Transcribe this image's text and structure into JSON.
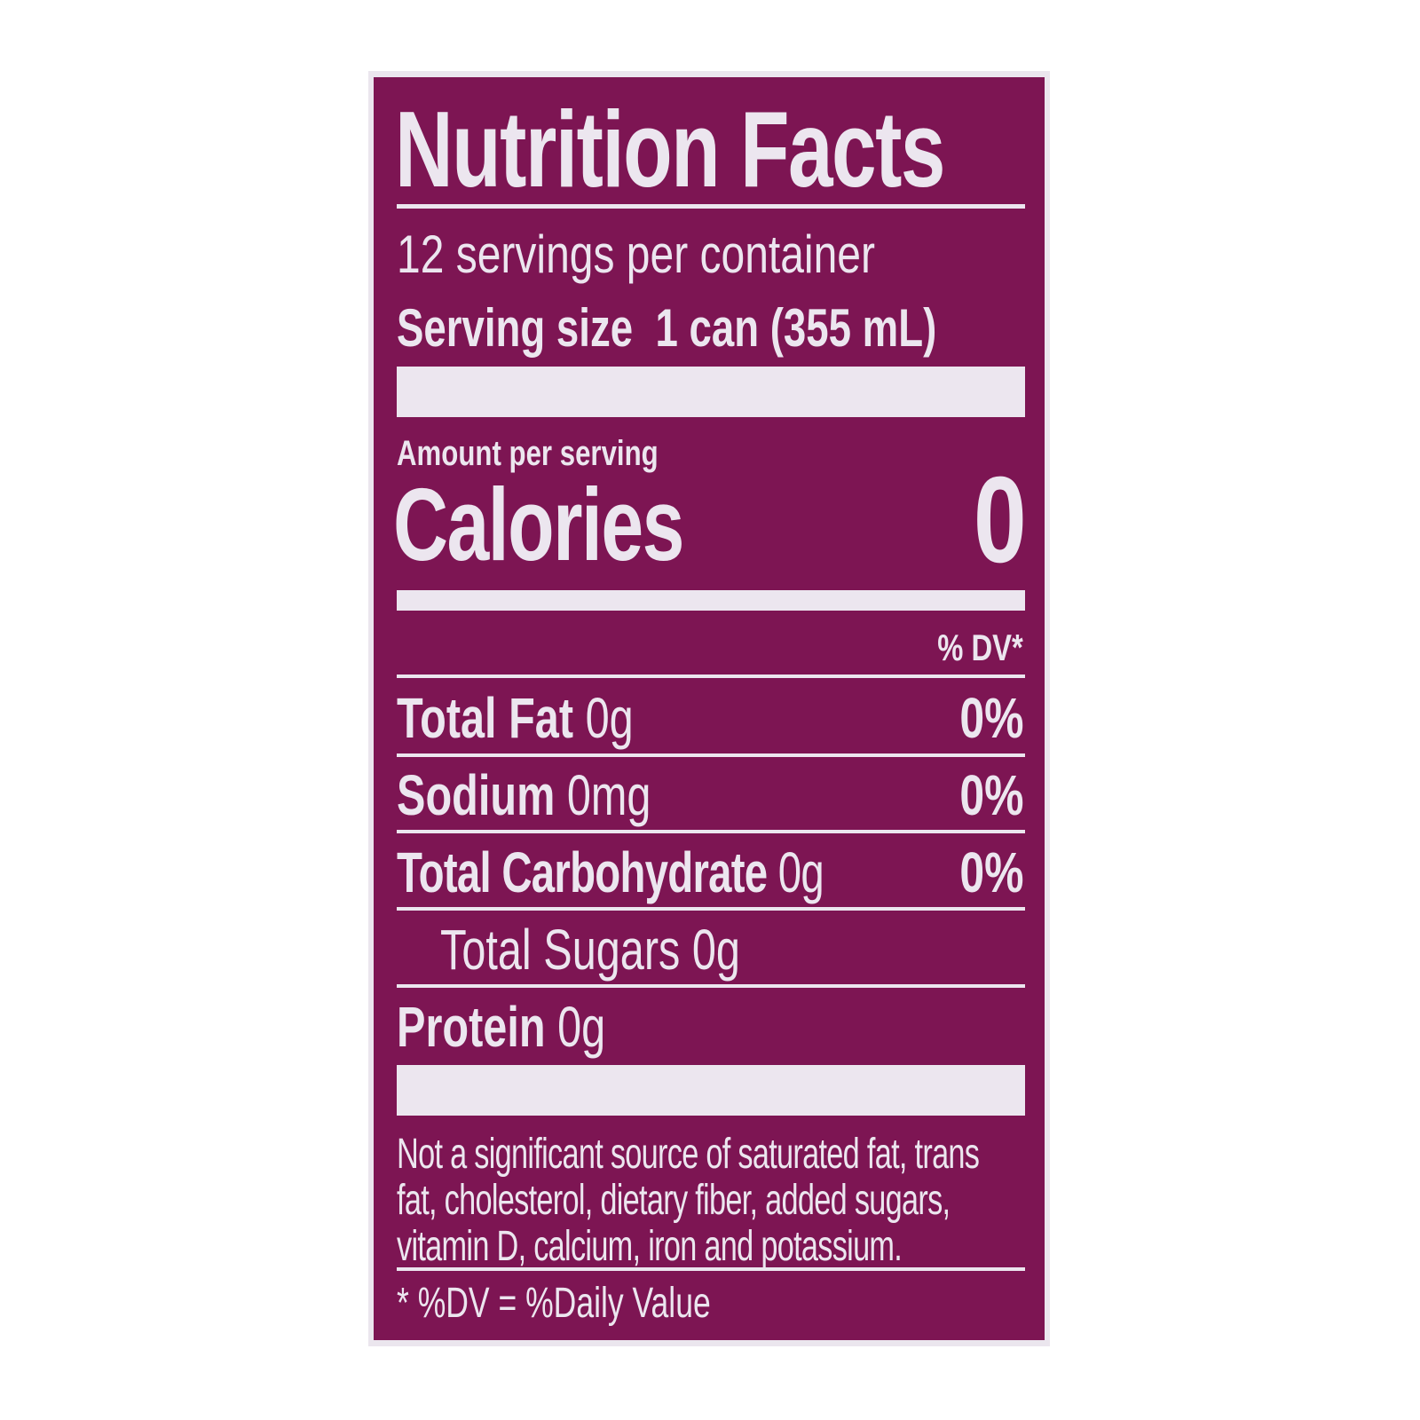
{
  "label": {
    "title": "Nutrition Facts",
    "servings_per_container": "12 servings per container",
    "serving_size_label": "Serving size",
    "serving_size_value": "1 can (355 mL)",
    "amount_per_serving": "Amount per serving",
    "calories_label": "Calories",
    "calories_value": "0",
    "dv_header": "% DV*",
    "nutrients": [
      {
        "name": "Total Fat",
        "amount": "0g",
        "dv": "0%"
      },
      {
        "name": "Sodium",
        "amount": "0mg",
        "dv": "0%"
      },
      {
        "name": "Total Carbohydrate",
        "amount": "0g",
        "dv": "0%"
      },
      {
        "name": "Total Sugars",
        "amount": "0g",
        "dv": ""
      },
      {
        "name": "Protein",
        "amount": "0g",
        "dv": ""
      }
    ],
    "footnote_lines": [
      "Not a significant source of saturated fat, trans",
      "fat, cholesterol, dietary fiber, added sugars,",
      "vitamin D, calcium, iron and potassium."
    ],
    "dv_note": "* %DV = %Daily Value"
  },
  "colors": {
    "background": "#7d1553",
    "text": "#ece6ef"
  }
}
